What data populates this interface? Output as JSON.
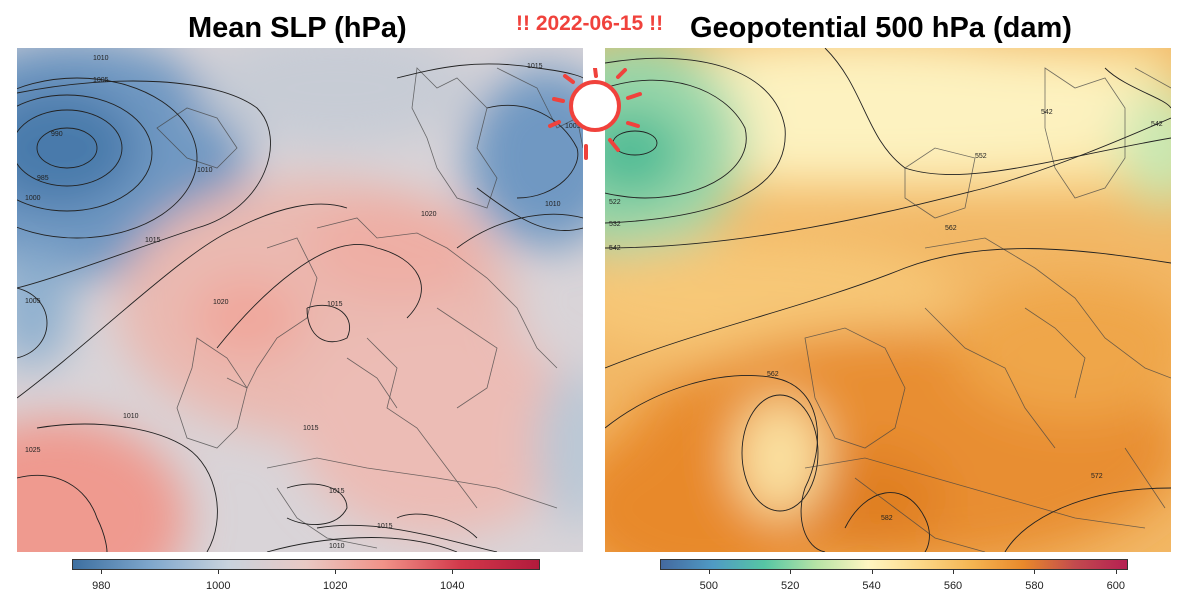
{
  "titles": {
    "left": "Mean SLP (hPa)",
    "right": "Geopotential 500 hPa (dam)",
    "date": "!! 2022-06-15 !!"
  },
  "left_map": {
    "field": "Mean sea level pressure",
    "contour_labels": [
      "1010",
      "1005",
      "990",
      "985",
      "1000",
      "1015",
      "1020",
      "1025",
      "1005",
      "1010",
      "1015",
      "1020",
      "1015",
      "1010",
      "1005",
      "1010",
      "1015",
      "1015",
      "1015",
      "1010"
    ],
    "colorbar": {
      "ticks": [
        "980",
        "1000",
        "1020",
        "1040"
      ],
      "range": [
        975,
        1055
      ],
      "colors": [
        "#3d6fa0",
        "#7fa7cc",
        "#c9d3dd",
        "#e9c9c4",
        "#f09288",
        "#d2384a",
        "#b21a3c"
      ]
    }
  },
  "right_map": {
    "field": "Geopotential height 500 hPa",
    "contour_labels": [
      "522",
      "532",
      "542",
      "552",
      "562",
      "542",
      "542",
      "562",
      "572",
      "582"
    ],
    "colorbar": {
      "ticks": [
        "500",
        "520",
        "540",
        "560",
        "580",
        "600"
      ],
      "range": [
        488,
        603
      ],
      "colors": [
        "#44699f",
        "#4f9ac4",
        "#56c6a4",
        "#b6e3a6",
        "#fff6c2",
        "#fcd889",
        "#f4b552",
        "#e9892b",
        "#c24a4e",
        "#b52052"
      ]
    }
  },
  "decoration": {
    "sun_color": "#f0423c",
    "icon": "sun-icon"
  }
}
